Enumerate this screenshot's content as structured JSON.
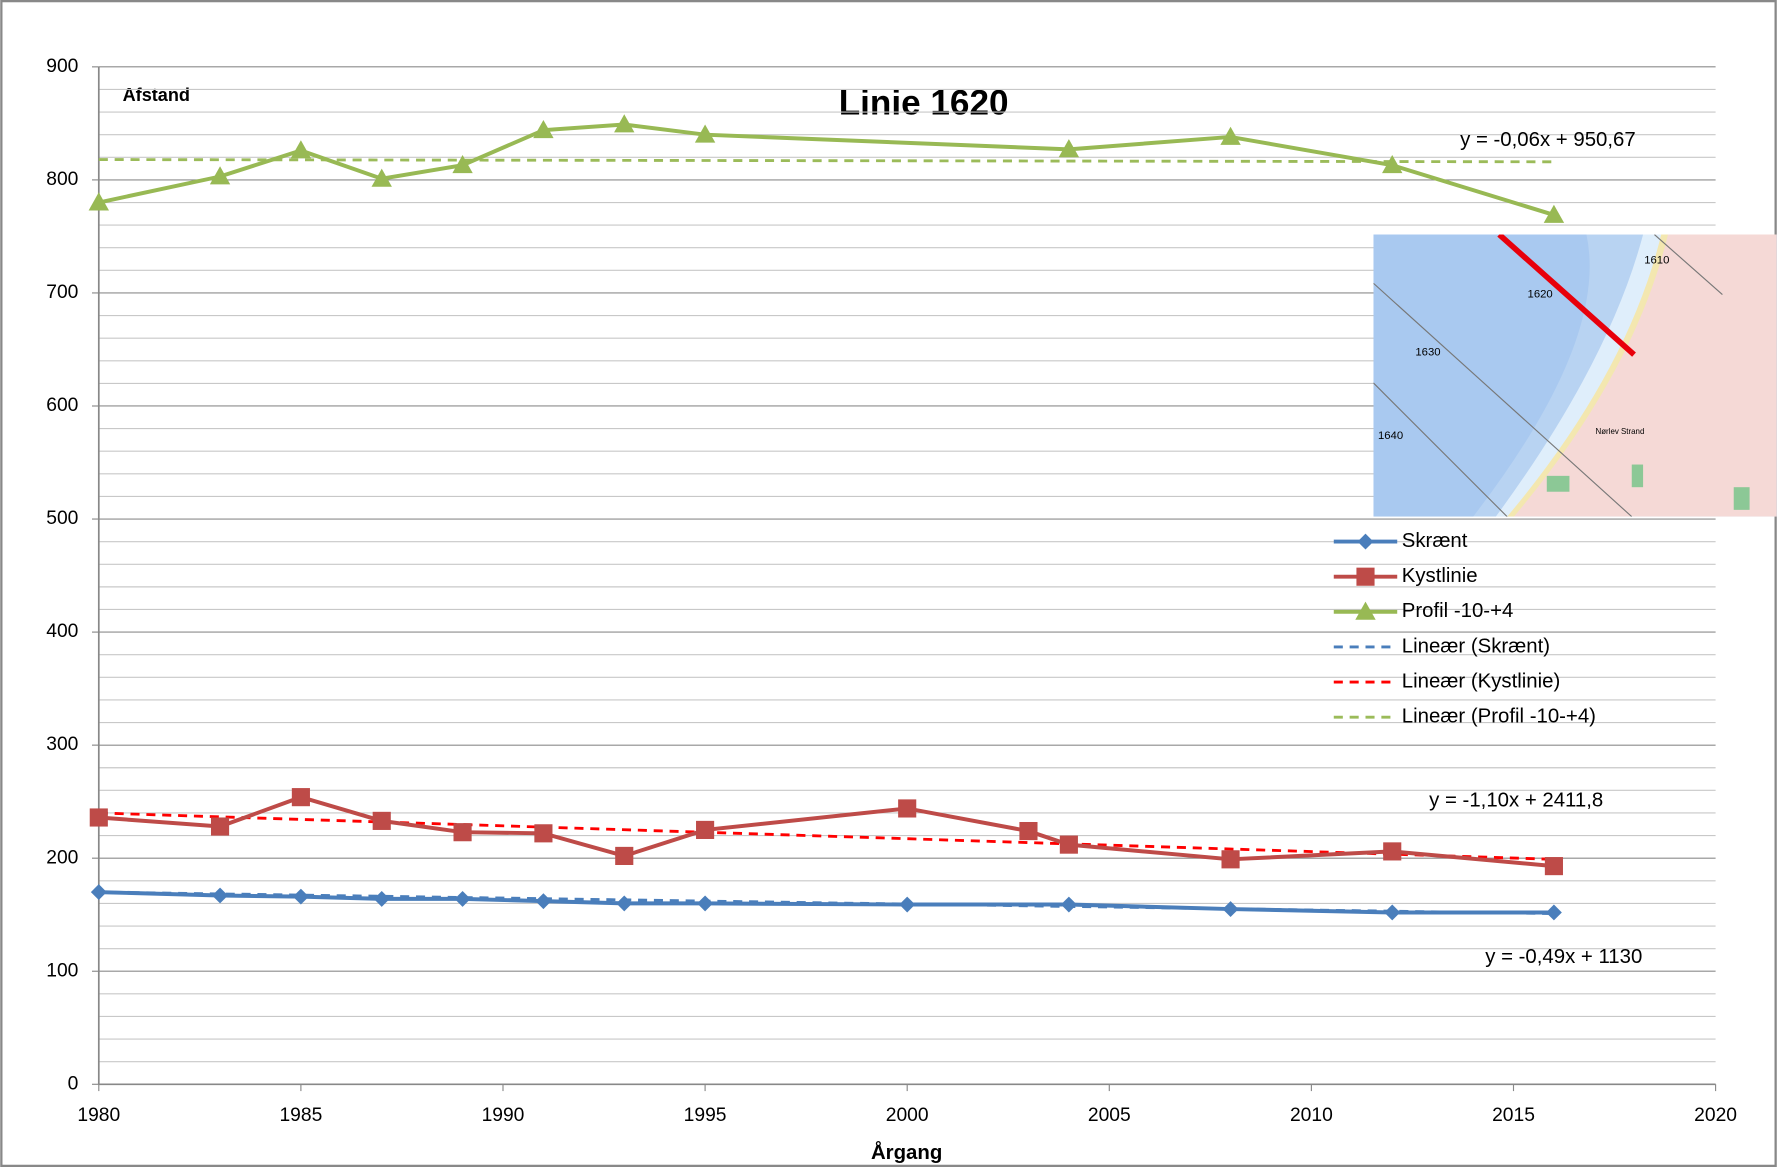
{
  "chart_data": {
    "type": "line",
    "title": "Linie 1620",
    "y_label": "Afstand",
    "x_label": "Årgang",
    "xlim": [
      1980,
      2020
    ],
    "xticks": [
      1980,
      1985,
      1990,
      1995,
      2000,
      2005,
      2010,
      2015,
      2020
    ],
    "ylim": [
      0,
      900
    ],
    "yticks": [
      0,
      100,
      200,
      300,
      400,
      500,
      600,
      700,
      800,
      900
    ],
    "grid": true,
    "minor_grid": true,
    "legend_position": "right",
    "series": [
      {
        "name": "Skrænt",
        "color": "#4a7ebb",
        "marker": "diamond",
        "x": [
          1980,
          1983,
          1985,
          1987,
          1989,
          1991,
          1993,
          1995,
          2000,
          2004,
          2008,
          2012,
          2016
        ],
        "values": [
          170,
          167,
          166,
          164,
          164,
          162,
          160,
          160,
          159,
          159,
          155,
          152,
          152
        ]
      },
      {
        "name": "Kystlinie",
        "color": "#be4b48",
        "marker": "square",
        "x": [
          1980,
          1983,
          1985,
          1987,
          1989,
          1991,
          1993,
          1995,
          2000,
          2003,
          2004,
          2008,
          2012,
          2016
        ],
        "values": [
          236,
          228,
          254,
          233,
          223,
          222,
          202,
          225,
          244,
          224,
          212,
          199,
          206,
          193
        ]
      },
      {
        "name": "Profil -10-+4",
        "color": "#98b954",
        "marker": "triangle",
        "x": [
          1980,
          1983,
          1985,
          1987,
          1989,
          1991,
          1993,
          1995,
          2004,
          2008,
          2012,
          2016
        ],
        "values": [
          780,
          803,
          826,
          801,
          813,
          844,
          849,
          840,
          827,
          838,
          813,
          769
        ]
      }
    ],
    "trendlines": [
      {
        "name": "Lineær (Skrænt)",
        "color": "#4a7ebb",
        "x": [
          1980,
          2016
        ],
        "values": [
          170,
          151
        ],
        "label": "y = -0,49x + 1130"
      },
      {
        "name": "Lineær (Kystlinie)",
        "color": "#ff0000",
        "x": [
          1980,
          2016
        ],
        "values": [
          240,
          199
        ],
        "label": "y = -1,10x + 2411,8"
      },
      {
        "name": "Lineær (Profil -10-+4)",
        "color": "#9bbb59",
        "x": [
          1980,
          2016
        ],
        "values": [
          818,
          816
        ],
        "label": "y = -0,06x + 950,67"
      }
    ]
  },
  "map_inset": {
    "labels": [
      "1610",
      "1620",
      "1630",
      "1640",
      "Nørlev Strand"
    ]
  }
}
